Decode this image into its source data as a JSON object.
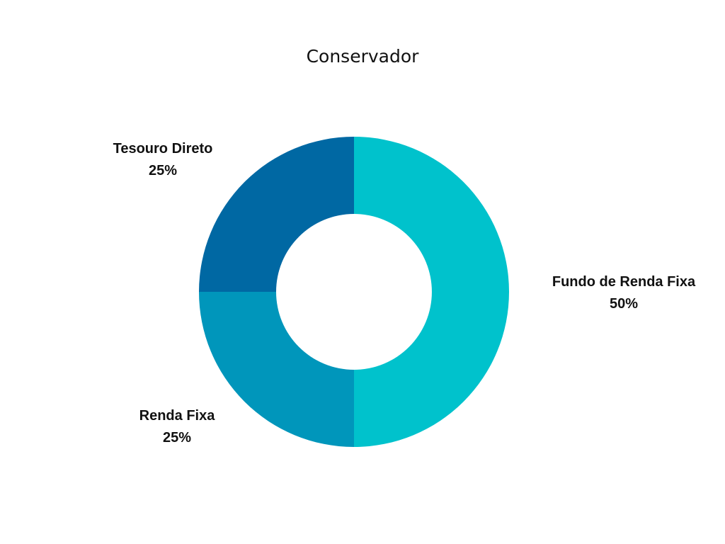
{
  "chart_data": {
    "type": "pie",
    "title": "Conservador",
    "donut": true,
    "slices": [
      {
        "label": "Fundo de Renda Fixa",
        "value": 50,
        "value_label": "50%",
        "color": "#00c2cc"
      },
      {
        "label": "Renda Fixa",
        "value": 25,
        "value_label": "25%",
        "color": "#0096bb"
      },
      {
        "label": "Tesouro Direto",
        "value": 25,
        "value_label": "25%",
        "color": "#0068a3"
      }
    ],
    "legend": "none"
  }
}
